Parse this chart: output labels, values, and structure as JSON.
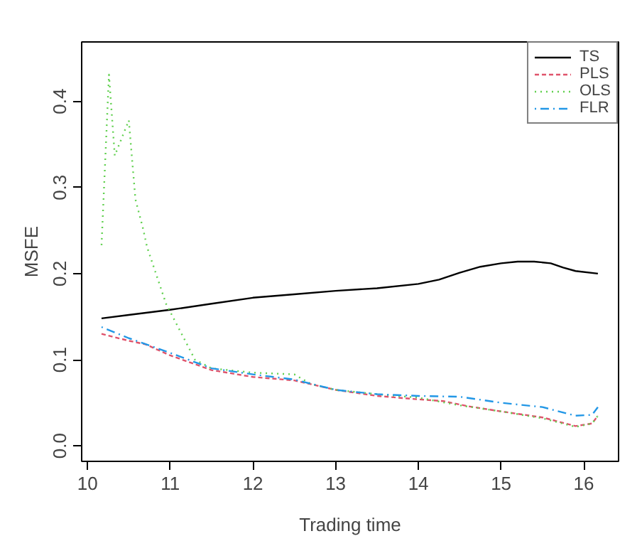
{
  "chart_data": {
    "type": "line",
    "xlabel": "Trading time",
    "ylabel": "MSFE",
    "xlim": [
      9.93,
      16.42
    ],
    "ylim": [
      -0.018,
      0.469
    ],
    "xticks": [
      10,
      11,
      12,
      13,
      14,
      15,
      16
    ],
    "yticks": [
      {
        "value": 0,
        "label": "0.0"
      },
      {
        "value": 0.1,
        "label": "0.1"
      },
      {
        "value": 0.2,
        "label": "0.2"
      },
      {
        "value": 0.3,
        "label": "0.3"
      },
      {
        "value": 0.4,
        "label": "0.4"
      }
    ],
    "grid": false,
    "legend": "top right",
    "marker": "none",
    "series": [
      {
        "name": "TS",
        "color": "#000000",
        "line_style": "solid",
        "x": [
          10.17,
          10.5,
          11,
          11.5,
          12,
          12.5,
          13,
          13.5,
          14,
          14.25,
          14.5,
          14.75,
          15,
          15.2,
          15.4,
          15.6,
          15.75,
          15.9,
          16.17
        ],
        "values": [
          0.148,
          0.152,
          0.158,
          0.165,
          0.172,
          0.176,
          0.18,
          0.183,
          0.188,
          0.193,
          0.201,
          0.208,
          0.212,
          0.214,
          0.214,
          0.212,
          0.207,
          0.203,
          0.2
        ]
      },
      {
        "name": "PLS",
        "color": "#df536b",
        "line_style": "dashed",
        "x": [
          10.17,
          10.5,
          10.7,
          11,
          11.5,
          12,
          12.5,
          13,
          13.5,
          14,
          14.3,
          14.6,
          15,
          15.5,
          15.9,
          16.1,
          16.17
        ],
        "values": [
          0.13,
          0.122,
          0.118,
          0.105,
          0.088,
          0.08,
          0.076,
          0.065,
          0.058,
          0.054,
          0.052,
          0.046,
          0.04,
          0.033,
          0.023,
          0.026,
          0.035
        ]
      },
      {
        "name": "OLS",
        "color": "#61d04f",
        "line_style": "dotted",
        "x": [
          10.17,
          10.26,
          10.33,
          10.5,
          10.58,
          10.67,
          10.72,
          10.95,
          11.3,
          11.5,
          12,
          12.5,
          12.7,
          13,
          13.5,
          14,
          14.5,
          15,
          15.5,
          15.9,
          16.1,
          16.17
        ],
        "values": [
          0.233,
          0.431,
          0.337,
          0.378,
          0.286,
          0.253,
          0.231,
          0.165,
          0.1,
          0.09,
          0.085,
          0.083,
          0.072,
          0.065,
          0.06,
          0.056,
          0.047,
          0.04,
          0.032,
          0.022,
          0.026,
          0.035
        ]
      },
      {
        "name": "FLR",
        "color": "#2297e6",
        "line_style": "dotdash",
        "x": [
          10.17,
          10.5,
          11,
          11.5,
          12,
          12.5,
          13,
          13.5,
          14,
          14.5,
          15,
          15.5,
          15.9,
          16.1,
          16.17
        ],
        "values": [
          0.138,
          0.125,
          0.108,
          0.09,
          0.083,
          0.077,
          0.065,
          0.06,
          0.058,
          0.057,
          0.05,
          0.045,
          0.035,
          0.036,
          0.045
        ]
      }
    ]
  }
}
